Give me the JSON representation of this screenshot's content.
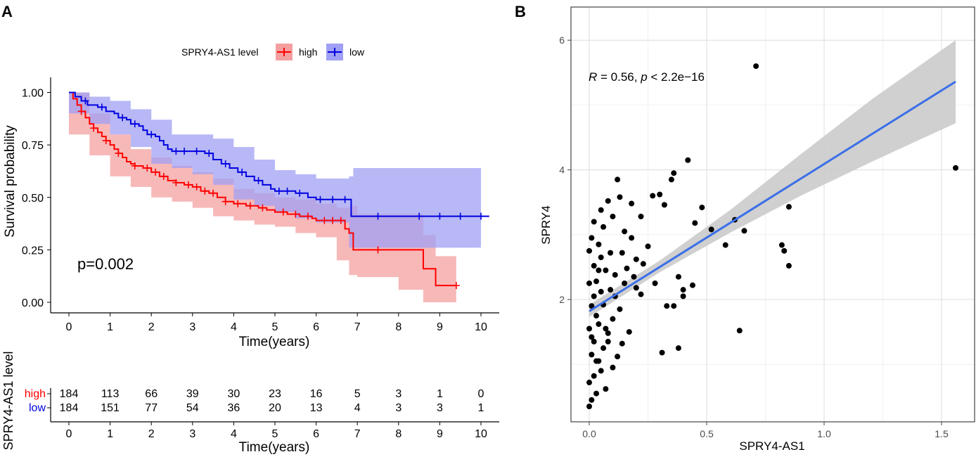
{
  "panels": [
    {
      "label": "A"
    },
    {
      "label": "B"
    }
  ],
  "colors": {
    "high": "#ff0000",
    "high_band": "#f4a0a0",
    "low": "#0000e0",
    "low_band": "#a0a0f4",
    "fit_line": "#3b6fe8",
    "fit_band": "#c8c8c8",
    "points": "#000000"
  },
  "chart_data": [
    {
      "type": "line",
      "title": "",
      "xlabel": "Time(years)",
      "ylabel": "Survival probability",
      "xlim": [
        0,
        10.2
      ],
      "ylim": [
        0,
        1.05
      ],
      "x_ticks": [
        0,
        1,
        2,
        3,
        4,
        5,
        6,
        7,
        8,
        9,
        10
      ],
      "y_ticks": [
        0.0,
        0.25,
        0.5,
        0.75,
        1.0
      ],
      "y_tick_labels": [
        "0.00",
        "0.25",
        "0.50",
        "0.75",
        "1.00"
      ],
      "legend_title": "SPRY4-AS1 level",
      "legend_position": "top",
      "annotation": "p=0.002",
      "series": [
        {
          "name": "high",
          "steps": [
            [
              0,
              1.0
            ],
            [
              0.1,
              0.97
            ],
            [
              0.2,
              0.94
            ],
            [
              0.3,
              0.91
            ],
            [
              0.4,
              0.88
            ],
            [
              0.5,
              0.85
            ],
            [
              0.6,
              0.83
            ],
            [
              0.7,
              0.81
            ],
            [
              0.8,
              0.79
            ],
            [
              0.9,
              0.77
            ],
            [
              1.0,
              0.75
            ],
            [
              1.1,
              0.73
            ],
            [
              1.2,
              0.71
            ],
            [
              1.3,
              0.69
            ],
            [
              1.4,
              0.67
            ],
            [
              1.5,
              0.66
            ],
            [
              1.6,
              0.65
            ],
            [
              1.8,
              0.64
            ],
            [
              2.0,
              0.62
            ],
            [
              2.2,
              0.6
            ],
            [
              2.4,
              0.58
            ],
            [
              2.6,
              0.57
            ],
            [
              2.8,
              0.56
            ],
            [
              3.0,
              0.55
            ],
            [
              3.2,
              0.53
            ],
            [
              3.4,
              0.52
            ],
            [
              3.6,
              0.5
            ],
            [
              3.8,
              0.48
            ],
            [
              4.0,
              0.47
            ],
            [
              4.3,
              0.46
            ],
            [
              4.6,
              0.45
            ],
            [
              4.8,
              0.44
            ],
            [
              5.0,
              0.43
            ],
            [
              5.3,
              0.42
            ],
            [
              5.6,
              0.41
            ],
            [
              5.9,
              0.4
            ],
            [
              6.0,
              0.39
            ],
            [
              6.7,
              0.35
            ],
            [
              6.8,
              0.33
            ],
            [
              6.9,
              0.25
            ],
            [
              7.0,
              0.25
            ],
            [
              8.0,
              0.25
            ],
            [
              8.6,
              0.16
            ],
            [
              8.9,
              0.08
            ],
            [
              9.4,
              0.08
            ]
          ],
          "ci_low": [
            [
              0,
              1.0
            ],
            [
              0.5,
              0.8
            ],
            [
              1.0,
              0.7
            ],
            [
              1.5,
              0.6
            ],
            [
              2.0,
              0.55
            ],
            [
              2.5,
              0.5
            ],
            [
              3.0,
              0.48
            ],
            [
              3.5,
              0.45
            ],
            [
              4.0,
              0.41
            ],
            [
              4.5,
              0.39
            ],
            [
              5.0,
              0.37
            ],
            [
              5.5,
              0.36
            ],
            [
              6.0,
              0.33
            ],
            [
              6.5,
              0.31
            ],
            [
              6.8,
              0.2
            ],
            [
              7.0,
              0.13
            ],
            [
              8.0,
              0.12
            ],
            [
              8.6,
              0.06
            ],
            [
              8.9,
              0.0
            ],
            [
              9.4,
              0.0
            ]
          ],
          "ci_high": [
            [
              0,
              1.0
            ],
            [
              0.5,
              0.9
            ],
            [
              1.0,
              0.8
            ],
            [
              1.5,
              0.73
            ],
            [
              2.0,
              0.69
            ],
            [
              2.5,
              0.65
            ],
            [
              3.0,
              0.62
            ],
            [
              3.5,
              0.59
            ],
            [
              4.0,
              0.54
            ],
            [
              4.5,
              0.52
            ],
            [
              5.0,
              0.5
            ],
            [
              5.5,
              0.49
            ],
            [
              6.0,
              0.47
            ],
            [
              6.5,
              0.45
            ],
            [
              6.8,
              0.46
            ],
            [
              7.0,
              0.42
            ],
            [
              8.0,
              0.42
            ],
            [
              8.6,
              0.32
            ],
            [
              8.9,
              0.22
            ],
            [
              9.4,
              0.22
            ]
          ],
          "censor_times": [
            0.3,
            0.6,
            0.9,
            1.2,
            1.6,
            1.9,
            2.1,
            2.3,
            2.6,
            2.9,
            3.1,
            3.3,
            3.5,
            3.8,
            4.1,
            4.4,
            4.7,
            5.2,
            5.5,
            5.8,
            6.2,
            6.4,
            6.6,
            7.5,
            9.4
          ]
        },
        {
          "name": "low",
          "steps": [
            [
              0,
              1.0
            ],
            [
              0.15,
              0.98
            ],
            [
              0.3,
              0.96
            ],
            [
              0.45,
              0.94
            ],
            [
              0.7,
              0.93
            ],
            [
              0.9,
              0.91
            ],
            [
              1.1,
              0.9
            ],
            [
              1.2,
              0.88
            ],
            [
              1.4,
              0.87
            ],
            [
              1.5,
              0.85
            ],
            [
              1.7,
              0.84
            ],
            [
              1.8,
              0.82
            ],
            [
              1.9,
              0.8
            ],
            [
              2.1,
              0.79
            ],
            [
              2.2,
              0.77
            ],
            [
              2.3,
              0.75
            ],
            [
              2.4,
              0.73
            ],
            [
              2.5,
              0.72
            ],
            [
              3.0,
              0.72
            ],
            [
              3.3,
              0.71
            ],
            [
              3.5,
              0.68
            ],
            [
              3.7,
              0.66
            ],
            [
              3.9,
              0.64
            ],
            [
              4.1,
              0.62
            ],
            [
              4.3,
              0.6
            ],
            [
              4.5,
              0.58
            ],
            [
              4.7,
              0.56
            ],
            [
              4.9,
              0.54
            ],
            [
              5.0,
              0.53
            ],
            [
              5.5,
              0.52
            ],
            [
              5.8,
              0.5
            ],
            [
              6.0,
              0.49
            ],
            [
              6.8,
              0.49
            ],
            [
              6.85,
              0.41
            ],
            [
              7.0,
              0.41
            ],
            [
              10.2,
              0.41
            ]
          ],
          "ci_low": [
            [
              0,
              1.0
            ],
            [
              0.5,
              0.9
            ],
            [
              1.0,
              0.85
            ],
            [
              1.5,
              0.8
            ],
            [
              2.0,
              0.74
            ],
            [
              2.5,
              0.66
            ],
            [
              3.0,
              0.64
            ],
            [
              3.5,
              0.61
            ],
            [
              4.0,
              0.56
            ],
            [
              4.5,
              0.49
            ],
            [
              5.0,
              0.46
            ],
            [
              5.5,
              0.43
            ],
            [
              6.0,
              0.4
            ],
            [
              6.8,
              0.38
            ],
            [
              6.9,
              0.26
            ],
            [
              10.0,
              0.26
            ]
          ],
          "ci_high": [
            [
              0,
              1.0
            ],
            [
              0.5,
              0.98
            ],
            [
              1.0,
              0.96
            ],
            [
              1.5,
              0.92
            ],
            [
              2.0,
              0.87
            ],
            [
              2.5,
              0.8
            ],
            [
              3.0,
              0.8
            ],
            [
              3.5,
              0.78
            ],
            [
              4.0,
              0.74
            ],
            [
              4.5,
              0.68
            ],
            [
              5.0,
              0.63
            ],
            [
              5.5,
              0.61
            ],
            [
              6.0,
              0.59
            ],
            [
              6.8,
              0.6
            ],
            [
              6.9,
              0.64
            ],
            [
              10.0,
              0.64
            ]
          ],
          "censor_times": [
            0.4,
            0.8,
            1.3,
            1.6,
            2.0,
            2.6,
            2.8,
            3.1,
            3.4,
            3.8,
            4.2,
            4.6,
            5.1,
            5.3,
            5.6,
            6.1,
            6.4,
            6.7,
            7.5,
            8.5,
            9.0,
            9.5,
            10.0
          ]
        }
      ]
    },
    {
      "type": "table",
      "title": "",
      "xlabel": "Time(years)",
      "ylabel": "SPRY4-AS1 level",
      "x_ticks": [
        0,
        1,
        2,
        3,
        4,
        5,
        6,
        7,
        8,
        9,
        10
      ],
      "rows": [
        {
          "name": "high",
          "values": [
            184,
            113,
            66,
            39,
            30,
            23,
            16,
            5,
            3,
            1,
            0
          ]
        },
        {
          "name": "low",
          "values": [
            184,
            151,
            77,
            54,
            36,
            20,
            13,
            4,
            3,
            3,
            1
          ]
        }
      ]
    },
    {
      "type": "scatter",
      "title": "",
      "xlabel": "SPRY4-AS1",
      "ylabel": "SPRY4",
      "xlim": [
        -0.05,
        1.6
      ],
      "ylim": [
        0.2,
        6.2
      ],
      "x_ticks": [
        0.0,
        0.5,
        1.0,
        1.5
      ],
      "x_tick_labels": [
        "0.0",
        "0.5",
        "1.0",
        "1.5"
      ],
      "y_ticks": [
        2,
        4,
        6
      ],
      "annotation": {
        "r_label": "R",
        "r_text": " = 0.56, ",
        "p_label": "p",
        "p_text": " < 2.2e−16"
      },
      "fit": {
        "intercept": 1.82,
        "slope": 2.27,
        "x_range": [
          0.0,
          1.56
        ]
      },
      "ci_band": {
        "x": [
          0.0,
          0.3,
          0.6,
          0.9,
          1.2,
          1.56
        ],
        "low": [
          1.73,
          2.42,
          3.03,
          3.6,
          4.12,
          4.72
        ],
        "high": [
          1.92,
          2.6,
          3.38,
          4.24,
          5.08,
          6.0
        ]
      },
      "points": [
        [
          0.71,
          5.6
        ],
        [
          1.56,
          4.03
        ],
        [
          0.85,
          3.43
        ],
        [
          0.42,
          4.15
        ],
        [
          0.36,
          3.95
        ],
        [
          0.3,
          3.62
        ],
        [
          0.32,
          3.46
        ],
        [
          0.35,
          3.85
        ],
        [
          0.27,
          3.6
        ],
        [
          0.45,
          3.18
        ],
        [
          0.48,
          3.42
        ],
        [
          0.52,
          3.08
        ],
        [
          0.62,
          3.23
        ],
        [
          0.58,
          2.84
        ],
        [
          0.66,
          3.06
        ],
        [
          0.82,
          2.84
        ],
        [
          0.83,
          2.75
        ],
        [
          0.85,
          2.52
        ],
        [
          0.64,
          1.52
        ],
        [
          0.31,
          1.18
        ],
        [
          0.38,
          1.25
        ],
        [
          0.33,
          1.9
        ],
        [
          0.36,
          1.9
        ],
        [
          0.4,
          2.05
        ],
        [
          0.44,
          2.22
        ],
        [
          0.4,
          2.15
        ],
        [
          0.38,
          2.35
        ],
        [
          0.28,
          2.25
        ],
        [
          0.22,
          2.08
        ],
        [
          0.2,
          2.18
        ],
        [
          0.12,
          3.85
        ],
        [
          0.1,
          3.28
        ],
        [
          0.15,
          3.05
        ],
        [
          0.08,
          3.52
        ],
        [
          0.05,
          3.38
        ],
        [
          0.13,
          3.58
        ],
        [
          0.18,
          3.48
        ],
        [
          0.22,
          3.28
        ],
        [
          0.18,
          2.95
        ],
        [
          0.25,
          2.82
        ],
        [
          0.23,
          2.55
        ],
        [
          0.16,
          2.48
        ],
        [
          0.2,
          2.62
        ],
        [
          0.14,
          2.72
        ],
        [
          0.11,
          2.38
        ],
        [
          0.09,
          2.15
        ],
        [
          0.17,
          1.5
        ],
        [
          0.12,
          1.12
        ],
        [
          0.08,
          1.48
        ],
        [
          0.1,
          1.7
        ],
        [
          0.06,
          1.25
        ],
        [
          0.05,
          0.9
        ],
        [
          0.03,
          0.55
        ],
        [
          0.02,
          0.82
        ],
        [
          0.07,
          0.62
        ],
        [
          0.04,
          1.05
        ],
        [
          0.01,
          0.45
        ],
        [
          0.0,
          0.35
        ],
        [
          0.02,
          1.35
        ],
        [
          0.04,
          1.62
        ],
        [
          0.06,
          1.92
        ],
        [
          0.03,
          2.28
        ],
        [
          0.05,
          2.65
        ],
        [
          0.01,
          2.95
        ],
        [
          0.02,
          3.2
        ],
        [
          0.07,
          2.45
        ],
        [
          0.09,
          2.72
        ],
        [
          0.11,
          2.05
        ],
        [
          0.13,
          1.85
        ],
        [
          0.15,
          2.25
        ],
        [
          0.01,
          1.15
        ],
        [
          0.03,
          1.75
        ],
        [
          0.0,
          1.55
        ],
        [
          0.02,
          2.05
        ],
        [
          0.04,
          2.45
        ],
        [
          0.0,
          2.75
        ],
        [
          0.06,
          3.12
        ],
        [
          0.08,
          1.35
        ],
        [
          0.1,
          0.95
        ],
        [
          0.0,
          0.72
        ],
        [
          0.01,
          1.9
        ],
        [
          0.02,
          2.52
        ],
        [
          0.03,
          1.05
        ],
        [
          0.05,
          2.12
        ],
        [
          0.07,
          1.55
        ],
        [
          0.0,
          2.25
        ],
        [
          0.04,
          2.85
        ],
        [
          0.01,
          1.42
        ],
        [
          0.14,
          1.32
        ],
        [
          0.19,
          2.35
        ]
      ]
    }
  ]
}
